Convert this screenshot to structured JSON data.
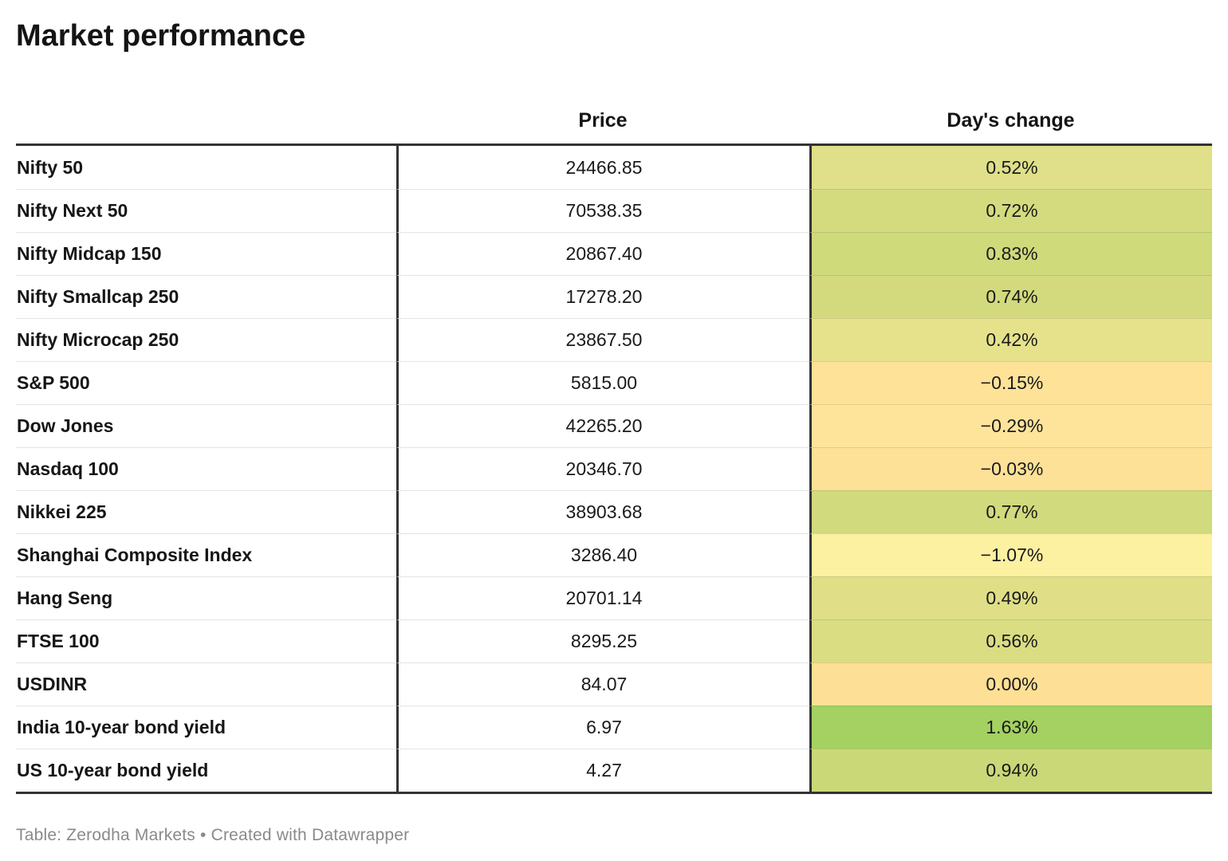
{
  "title": "Market performance",
  "footer": "Table: Zerodha Markets • Created with Datawrapper",
  "columns": {
    "price_label": "Price",
    "change_label": "Day's change"
  },
  "accent_colors": {
    "border_dark": "#333333",
    "positive_strong_green": "#a4d161",
    "neutral_gold": "#fde095",
    "pale_negative_yellow": "#fcf0a1"
  },
  "chart_data": {
    "type": "table",
    "title": "Market performance",
    "columns": [
      "",
      "Price",
      "Day's change"
    ],
    "source_note": "Table: Zerodha Markets • Created with Datawrapper",
    "rows": [
      {
        "label": "Nifty 50",
        "price": "24466.85",
        "change": "0.52%",
        "change_value": 0.52,
        "color": "#dfe089"
      },
      {
        "label": "Nifty Next 50",
        "price": "70538.35",
        "change": "0.72%",
        "change_value": 0.72,
        "color": "#d4db7e"
      },
      {
        "label": "Nifty Midcap 150",
        "price": "20867.40",
        "change": "0.83%",
        "change_value": 0.83,
        "color": "#cfda7b"
      },
      {
        "label": "Nifty Smallcap 250",
        "price": "17278.20",
        "change": "0.74%",
        "change_value": 0.74,
        "color": "#d2da7d"
      },
      {
        "label": "Nifty Microcap 250",
        "price": "23867.50",
        "change": "0.42%",
        "change_value": 0.42,
        "color": "#e6e28c"
      },
      {
        "label": "S&P 500",
        "price": "5815.00",
        "change": "−0.15%",
        "change_value": -0.15,
        "color": "#fde298"
      },
      {
        "label": "Dow Jones",
        "price": "42265.20",
        "change": "−0.29%",
        "change_value": -0.29,
        "color": "#fee49b"
      },
      {
        "label": "Nasdaq 100",
        "price": "20346.70",
        "change": "−0.03%",
        "change_value": -0.03,
        "color": "#fde197"
      },
      {
        "label": "Nikkei 225",
        "price": "38903.68",
        "change": "0.77%",
        "change_value": 0.77,
        "color": "#d1da7c"
      },
      {
        "label": "Shanghai Composite Index",
        "price": "3286.40",
        "change": "−1.07%",
        "change_value": -1.07,
        "color": "#fcf0a1"
      },
      {
        "label": "Hang Seng",
        "price": "20701.14",
        "change": "0.49%",
        "change_value": 0.49,
        "color": "#e0df87"
      },
      {
        "label": "FTSE 100",
        "price": "8295.25",
        "change": "0.56%",
        "change_value": 0.56,
        "color": "#dadd82"
      },
      {
        "label": "USDINR",
        "price": "84.07",
        "change": "0.00%",
        "change_value": 0.0,
        "color": "#fde095"
      },
      {
        "label": "India 10-year bond yield",
        "price": "6.97",
        "change": "1.63%",
        "change_value": 1.63,
        "color": "#a4d161"
      },
      {
        "label": "US 10-year bond yield",
        "price": "4.27",
        "change": "0.94%",
        "change_value": 0.94,
        "color": "#cbd878"
      }
    ]
  }
}
